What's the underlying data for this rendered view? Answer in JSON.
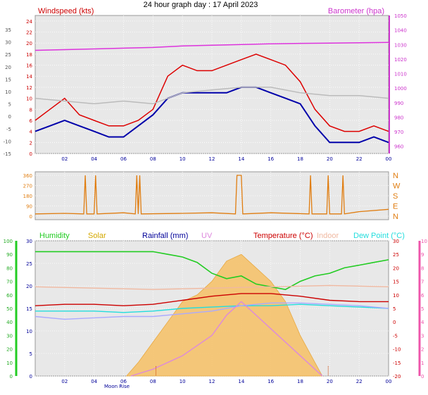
{
  "title": "24 hour graph day : 17 April 2023",
  "colors": {
    "windspeed": "#dd0000",
    "gust_avg": "#0000aa",
    "wind_gray": "#bbbbbb",
    "barometer": "#dd33dd",
    "direction": "#e07d10",
    "humidity": "#22cc22",
    "solar": "#d4a800",
    "rainfall": "#000099",
    "uv": "#dd88dd",
    "temperature": "#cc0000",
    "indoor": "#f0b8a0",
    "dewpoint": "#22dddd",
    "feels": "#aaaaff"
  },
  "x_tick_labels": [
    "02",
    "04",
    "06",
    "08",
    "10",
    "12",
    "14",
    "16",
    "18",
    "20",
    "22",
    "00"
  ],
  "moon_rise_label": "Moon Rise",
  "chart_data": [
    {
      "type": "line",
      "name": "wind-barometer",
      "left_axis_title": "Windspeed (kts)",
      "right_axis_title": "Barometer (hpa)",
      "left_ticks": [
        "24",
        "22",
        "20",
        "18",
        "16",
        "14",
        "12",
        "10",
        "8",
        "6",
        "4",
        "2",
        "0"
      ],
      "left_ylim": [
        0,
        25
      ],
      "right_ticks": [
        "1050",
        "1040",
        "1030",
        "1020",
        "1010",
        "1000",
        "990",
        "980",
        "970",
        "960"
      ],
      "right_ylim": [
        955,
        1050
      ],
      "far_left_ticks": [
        "35",
        "30",
        "25",
        "20",
        "15",
        "10",
        "5",
        "0",
        "-5",
        "-10",
        "-15"
      ],
      "x_hours": [
        0,
        24
      ],
      "series": [
        {
          "key": "wind_red",
          "color_key": "windspeed",
          "x": [
            0,
            1,
            2,
            3,
            4,
            5,
            6,
            7,
            8,
            9,
            10,
            11,
            12,
            13,
            14,
            15,
            16,
            17,
            18,
            19,
            20,
            21,
            22,
            23,
            24
          ],
          "values": [
            6,
            8,
            10,
            7,
            6,
            5,
            5,
            6,
            8,
            14,
            16,
            15,
            15,
            16,
            17,
            18,
            17,
            16,
            13,
            8,
            5,
            4,
            4,
            5,
            4
          ]
        },
        {
          "key": "wind_blue",
          "color_key": "gust_avg",
          "x": [
            0,
            1,
            2,
            3,
            4,
            5,
            6,
            7,
            8,
            9,
            10,
            11,
            12,
            13,
            14,
            15,
            16,
            17,
            18,
            19,
            20,
            21,
            22,
            23,
            24
          ],
          "values": [
            4,
            5,
            6,
            5,
            4,
            3,
            3,
            5,
            7,
            10,
            11,
            11,
            11,
            11,
            12,
            12,
            11,
            10,
            9,
            5,
            2,
            2,
            2,
            3,
            2
          ]
        },
        {
          "key": "wind_gray",
          "color_key": "wind_gray",
          "x": [
            0,
            2,
            4,
            6,
            8,
            10,
            12,
            14,
            16,
            18,
            20,
            22,
            24
          ],
          "values": [
            10,
            9.5,
            9,
            9.5,
            9,
            11,
            11.5,
            12,
            12,
            11,
            10.5,
            10.5,
            10
          ]
        },
        {
          "key": "barometer",
          "color_key": "barometer",
          "axis": "right",
          "x": [
            0,
            2,
            4,
            6,
            8,
            10,
            12,
            14,
            16,
            18,
            20,
            22,
            24
          ],
          "values": [
            1026,
            1026.5,
            1027,
            1027.5,
            1028,
            1029,
            1029.5,
            1030,
            1030.5,
            1030.8,
            1031,
            1031.2,
            1031.5
          ]
        }
      ]
    },
    {
      "type": "line",
      "name": "wind-direction",
      "right_axis_labels": [
        "N",
        "W",
        "S",
        "E",
        "N"
      ],
      "left_ticks": [
        "360",
        "270",
        "180",
        "90",
        "0"
      ],
      "ylim": [
        0,
        360
      ],
      "x_hours": [
        0,
        24
      ],
      "series": [
        {
          "key": "direction",
          "color_key": "direction",
          "x": [
            0,
            2,
            3.3,
            3.4,
            3.5,
            4.0,
            4.1,
            4.2,
            6,
            6.8,
            6.9,
            7.0,
            7.1,
            7.2,
            10,
            12,
            13.6,
            13.7,
            14.0,
            14.1,
            16,
            18.6,
            18.7,
            18.8,
            19.8,
            19.9,
            20.0,
            20.8,
            20.9,
            21.0,
            22,
            24
          ],
          "values": [
            20,
            25,
            20,
            360,
            20,
            20,
            360,
            20,
            30,
            20,
            360,
            20,
            360,
            20,
            25,
            30,
            20,
            360,
            360,
            20,
            30,
            20,
            360,
            20,
            20,
            360,
            20,
            20,
            360,
            20,
            40,
            60
          ]
        }
      ]
    },
    {
      "type": "area",
      "name": "temperature-solar",
      "legend": [
        "Humidity",
        "Solar",
        "Rainfall (mm)",
        "UV",
        "Temperature (°C)",
        "Indoor",
        "Dew Point (°C)"
      ],
      "humidity_ticks": [
        "100",
        "90",
        "80",
        "70",
        "60",
        "50",
        "40",
        "30",
        "20",
        "10",
        "0"
      ],
      "humidity_ylim": [
        0,
        100
      ],
      "rain_ticks": [
        "30",
        "25",
        "20",
        "15",
        "10",
        "5",
        "0"
      ],
      "rain_ylim": [
        0,
        30
      ],
      "temp_ticks": [
        "30",
        "25",
        "20",
        "15",
        "10",
        "5",
        "0",
        "-5",
        "-10",
        "-15",
        "-20"
      ],
      "temp_ylim": [
        -20,
        30
      ],
      "uv_ticks": [
        "10",
        "9",
        "8",
        "7",
        "6",
        "5",
        "4",
        "3",
        "2",
        "1",
        "0"
      ],
      "uv_ylim": [
        0,
        10
      ],
      "x_hours": [
        0,
        24
      ],
      "series": [
        {
          "key": "humidity",
          "color_key": "humidity",
          "axis": "humidity",
          "x": [
            0,
            2,
            4,
            6,
            8,
            9,
            10,
            11,
            12,
            13,
            14,
            15,
            16,
            17,
            18,
            19,
            20,
            21,
            22,
            23,
            24
          ],
          "values": [
            92,
            92,
            92,
            92,
            92,
            90,
            88,
            84,
            76,
            72,
            74,
            68,
            66,
            64,
            70,
            74,
            76,
            80,
            82,
            84,
            86
          ]
        },
        {
          "key": "indoor",
          "color_key": "indoor",
          "axis": "temp",
          "x": [
            0,
            4,
            8,
            12,
            16,
            20,
            24
          ],
          "values": [
            13,
            12.5,
            12,
            12.5,
            13,
            13.5,
            13
          ]
        },
        {
          "key": "temperature",
          "color_key": "temperature",
          "axis": "temp",
          "x": [
            0,
            2,
            4,
            6,
            8,
            10,
            12,
            14,
            16,
            18,
            20,
            22,
            24
          ],
          "values": [
            6,
            6.5,
            6.5,
            6,
            6.5,
            8,
            9.5,
            10.5,
            10.5,
            9.5,
            8,
            7.5,
            7.5
          ]
        },
        {
          "key": "dewpoint",
          "color_key": "dewpoint",
          "axis": "temp",
          "x": [
            0,
            2,
            4,
            6,
            8,
            10,
            12,
            14,
            16,
            18,
            20,
            22,
            24
          ],
          "values": [
            4,
            4,
            4,
            3.5,
            4,
            5,
            5.5,
            6,
            6,
            6.5,
            6,
            5.5,
            5
          ]
        },
        {
          "key": "feels",
          "color_key": "feels",
          "axis": "temp",
          "x": [
            0,
            2,
            4,
            6,
            8,
            10,
            12,
            14,
            16,
            18,
            20,
            22,
            24
          ],
          "values": [
            2,
            1,
            1.5,
            2,
            2,
            3,
            4,
            6,
            7,
            7,
            6.5,
            6,
            5
          ]
        },
        {
          "key": "solar",
          "color_key": "solar",
          "axis": "uv",
          "fill": true,
          "x": [
            6.2,
            7,
            8,
            9,
            10,
            11,
            12,
            13,
            14,
            15,
            16,
            17,
            18,
            19,
            19.5
          ],
          "values": [
            0,
            1,
            2.5,
            4,
            5.5,
            6,
            7,
            8.5,
            9,
            8,
            7,
            5.5,
            3,
            1,
            0
          ]
        },
        {
          "key": "uv",
          "color_key": "uv",
          "axis": "uv",
          "x": [
            6.5,
            8,
            10,
            12,
            13,
            14,
            15,
            16,
            17,
            18,
            19,
            19.5
          ],
          "values": [
            0,
            0.5,
            1.5,
            3,
            4.5,
            5.5,
            4.5,
            3.5,
            2.5,
            1.5,
            0.5,
            0
          ]
        }
      ]
    }
  ]
}
